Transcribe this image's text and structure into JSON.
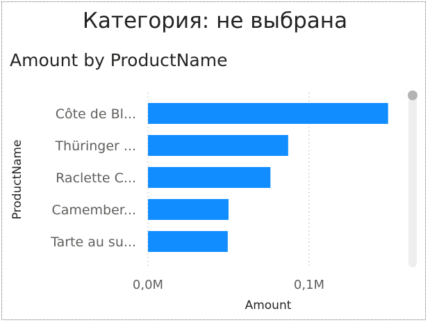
{
  "header": {
    "title": "Категория: не выбрана"
  },
  "chart_data": {
    "type": "bar",
    "orientation": "horizontal",
    "title": "Amount by ProductName",
    "xlabel": "Amount",
    "ylabel": "ProductName",
    "categories": [
      "Côte de Bl...",
      "Thüringer ...",
      "Raclette C...",
      "Camember...",
      "Tarte au su..."
    ],
    "values": [
      149000,
      87000,
      76000,
      50000,
      49500
    ],
    "xlim": [
      0,
      150000
    ],
    "x_ticks": [
      {
        "value": 0,
        "label": "0,0M"
      },
      {
        "value": 100000,
        "label": "0,1M"
      }
    ],
    "bar_color": "#118dff",
    "grid": "vertical dotted",
    "legend": "none"
  }
}
